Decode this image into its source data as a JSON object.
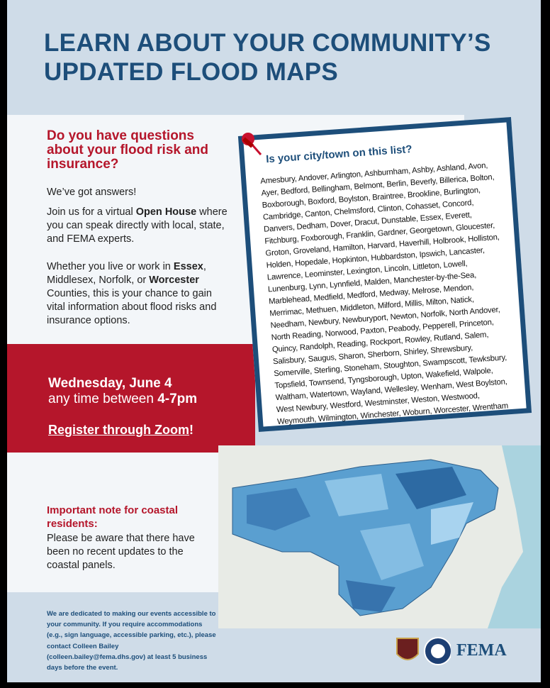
{
  "header": {
    "title": "LEARN ABOUT YOUR COMMUNITY’S UPDATED FLOOD MAPS"
  },
  "intro": {
    "question": "Do you have questions about your flood risk and insurance?",
    "answer": "We’ve got answers!",
    "join": [
      "Join us for a virtual ",
      "Open House",
      " where you can speak directly with local, state, and FEMA experts."
    ],
    "counties": [
      "Whether you live or work in ",
      "Essex",
      ", Middlesex, Norfolk, or ",
      "Worcester",
      " Counties, this is your chance to gain vital information about flood risks and insurance options."
    ]
  },
  "event": {
    "date": "Wednesday, June 4",
    "time_prefix": "any time between ",
    "time": "4-7pm",
    "register": "Register through Zoom",
    "register_mark": "!"
  },
  "note": {
    "heading": "Important note for coastal residents:",
    "body": "Please be aware that there have been no recent updates to the coastal panels."
  },
  "footer": "We are dedicated to making our events accessible to your community. If you require accommodations (e.g., sign language, accessible parking, etc.), please contact Colleen Bailey (colleen.bailey@fema.dhs.gov) at least 5 business days before the event.",
  "towns": {
    "heading": "Is your city/town on this list?",
    "list": "Amesbury, Andover, Arlington, Ashburnham, Ashby, Ashland, Avon, Ayer, Bedford, Bellingham, Belmont, Berlin, Beverly, Billerica, Bolton, Boxborough, Boxford, Boylston, Braintree, Brookline, Burlington, Cambridge, Canton, Chelmsford, Clinton, Cohasset, Concord, Danvers, Dedham, Dover, Dracut, Dunstable, Essex, Everett, Fitchburg, Foxborough, Franklin, Gardner, Georgetown, Gloucester, Groton, Groveland, Hamilton, Harvard, Haverhill, Holbrook, Holliston, Holden, Hopedale, Hopkinton, Hubbardston, Ipswich, Lancaster, Lawrence, Leominster, Lexington, Lincoln, Littleton, Lowell, Lunenburg, Lynn, Lynnfield, Malden, Manchester-by-the-Sea, Marblehead, Medfield, Medford, Medway, Melrose, Mendon, Merrimac, Methuen, Middleton, Milford, Millis, Milton, Natick, Needham, Newbury, Newburyport, Newton, Norfolk, North Andover, North Reading, Norwood, Paxton, Peabody, Pepperell, Princeton, Quincy, Randolph, Reading, Rockport, Rowley, Rutland, Salem, Salisbury, Saugus, Sharon, Sherborn, Shirley, Shrewsbury, Somerville, Sterling, Stoneham, Stoughton, Swampscott, Tewksbury, Topsfield, Townsend, Tyngsborough, Upton, Wakefield, Walpole, Waltham, Watertown, Wayland, Wellesley, Wenham, West Boylston, West Newbury, Westford, Westminster, Weston, Westwood, Weymouth, Wilmington, Winchester, Woburn, Worcester, Wrentham"
  },
  "logos": {
    "fema": "FEMA"
  }
}
